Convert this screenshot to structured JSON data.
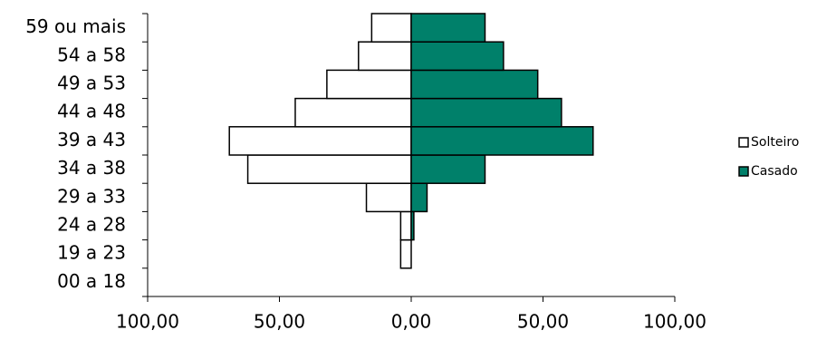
{
  "chart_data": {
    "type": "bar",
    "orientation": "horizontal",
    "stacked": false,
    "categories": [
      "00 a 18",
      "19 a 23",
      "24 a 28",
      "29 a 33",
      "34 a 38",
      "39 a 43",
      "44 a 48",
      "49 a 53",
      "54 a 58",
      "59 ou mais"
    ],
    "series": [
      {
        "name": "Solteiro",
        "color": "#ffffff",
        "values": [
          0,
          -4,
          -4,
          -17,
          -62,
          -69,
          -44,
          -32,
          -20,
          -15
        ]
      },
      {
        "name": "Casado",
        "color": "#00806a",
        "values": [
          0,
          0,
          1,
          6,
          28,
          69,
          57,
          48,
          35,
          28
        ]
      }
    ],
    "xlim": [
      -100,
      100
    ],
    "xticks": [
      {
        "value": -100,
        "label": "100,00"
      },
      {
        "value": -50,
        "label": "50,00"
      },
      {
        "value": 0,
        "label": "0,00"
      },
      {
        "value": 50,
        "label": "50,00"
      },
      {
        "value": 100,
        "label": "100,00"
      }
    ],
    "grid": false,
    "legend": "right"
  }
}
